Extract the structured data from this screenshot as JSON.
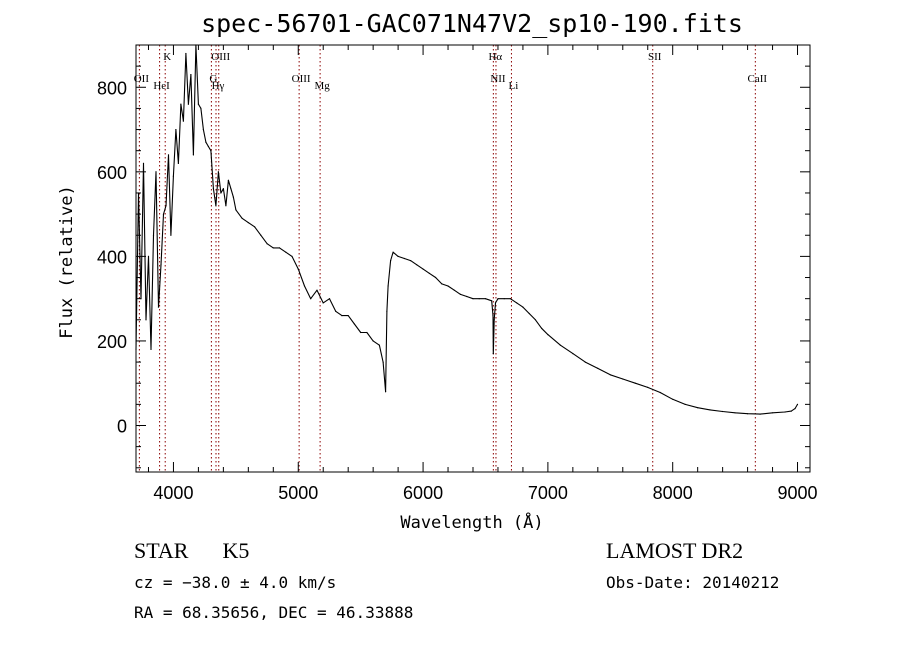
{
  "chart_data": {
    "type": "line",
    "title": "spec-56701-GAC071N47V2_sp10-190.fits",
    "xlabel": "Wavelength (Å)",
    "ylabel": "Flux (relative)",
    "xlim": [
      3700,
      9100
    ],
    "ylim": [
      -110,
      900
    ],
    "xticks": [
      4000,
      5000,
      6000,
      7000,
      8000,
      9000
    ],
    "yticks": [
      0,
      200,
      400,
      600,
      800
    ],
    "series": [
      {
        "name": "flux",
        "x": [
          3700,
          3720,
          3740,
          3760,
          3780,
          3800,
          3820,
          3840,
          3860,
          3880,
          3900,
          3920,
          3940,
          3960,
          3980,
          4000,
          4020,
          4040,
          4060,
          4080,
          4100,
          4120,
          4140,
          4160,
          4180,
          4200,
          4220,
          4240,
          4260,
          4280,
          4300,
          4320,
          4340,
          4360,
          4380,
          4400,
          4420,
          4440,
          4460,
          4480,
          4500,
          4550,
          4600,
          4650,
          4700,
          4750,
          4800,
          4850,
          4900,
          4950,
          5000,
          5050,
          5100,
          5150,
          5200,
          5250,
          5300,
          5350,
          5400,
          5450,
          5500,
          5550,
          5600,
          5650,
          5680,
          5700,
          5710,
          5720,
          5740,
          5760,
          5800,
          5850,
          5900,
          5950,
          6000,
          6050,
          6100,
          6150,
          6200,
          6250,
          6300,
          6350,
          6400,
          6450,
          6500,
          6550,
          6560,
          6563,
          6570,
          6580,
          6600,
          6650,
          6700,
          6750,
          6800,
          6850,
          6900,
          6950,
          7000,
          7100,
          7200,
          7300,
          7400,
          7500,
          7600,
          7700,
          7800,
          7900,
          8000,
          8100,
          8200,
          8300,
          8400,
          8500,
          8600,
          8700,
          8800,
          8900,
          8950,
          8980,
          9000
        ],
        "values": [
          180,
          550,
          300,
          620,
          250,
          400,
          180,
          450,
          600,
          280,
          380,
          500,
          520,
          640,
          450,
          590,
          700,
          620,
          760,
          720,
          880,
          760,
          830,
          640,
          900,
          760,
          750,
          700,
          670,
          660,
          650,
          560,
          520,
          600,
          550,
          560,
          520,
          580,
          560,
          540,
          510,
          490,
          480,
          470,
          450,
          430,
          420,
          420,
          410,
          400,
          370,
          330,
          300,
          320,
          290,
          300,
          270,
          260,
          260,
          240,
          220,
          220,
          200,
          190,
          150,
          80,
          270,
          330,
          390,
          410,
          400,
          395,
          390,
          380,
          370,
          360,
          350,
          335,
          330,
          320,
          310,
          305,
          300,
          300,
          300,
          295,
          260,
          170,
          250,
          290,
          300,
          300,
          300,
          290,
          280,
          265,
          250,
          230,
          215,
          190,
          170,
          150,
          135,
          120,
          110,
          100,
          90,
          78,
          62,
          50,
          42,
          37,
          33,
          30,
          28,
          27,
          30,
          32,
          34,
          40,
          50
        ]
      }
    ],
    "lines": [
      {
        "name": "OII",
        "x": 3727
      },
      {
        "name": "HeI",
        "x": 3889
      },
      {
        "name": "K",
        "x": 3934
      },
      {
        "name": "G",
        "x": 4304
      },
      {
        "name": "Hγ",
        "x": 4341
      },
      {
        "name": "OIII",
        "x": 4363
      },
      {
        "name": "OIII",
        "x": 5007
      },
      {
        "name": "Mg",
        "x": 5175
      },
      {
        "name": "Hα",
        "x": 6563
      },
      {
        "name": "NII",
        "x": 6584
      },
      {
        "name": "Li",
        "x": 6708
      },
      {
        "name": "SII",
        "x": 7840
      },
      {
        "name": "CaII",
        "x": 8662
      }
    ],
    "line_color": "#8b0000"
  },
  "info": {
    "object_class": "STAR",
    "subclass": "K5",
    "redshift_line": "cz = −38.0 ± 4.0 km/s",
    "coords_line": "RA =  68.35656, DEC =  46.33888",
    "survey": "LAMOST DR2",
    "obs_date": "Obs-Date: 20140212"
  }
}
